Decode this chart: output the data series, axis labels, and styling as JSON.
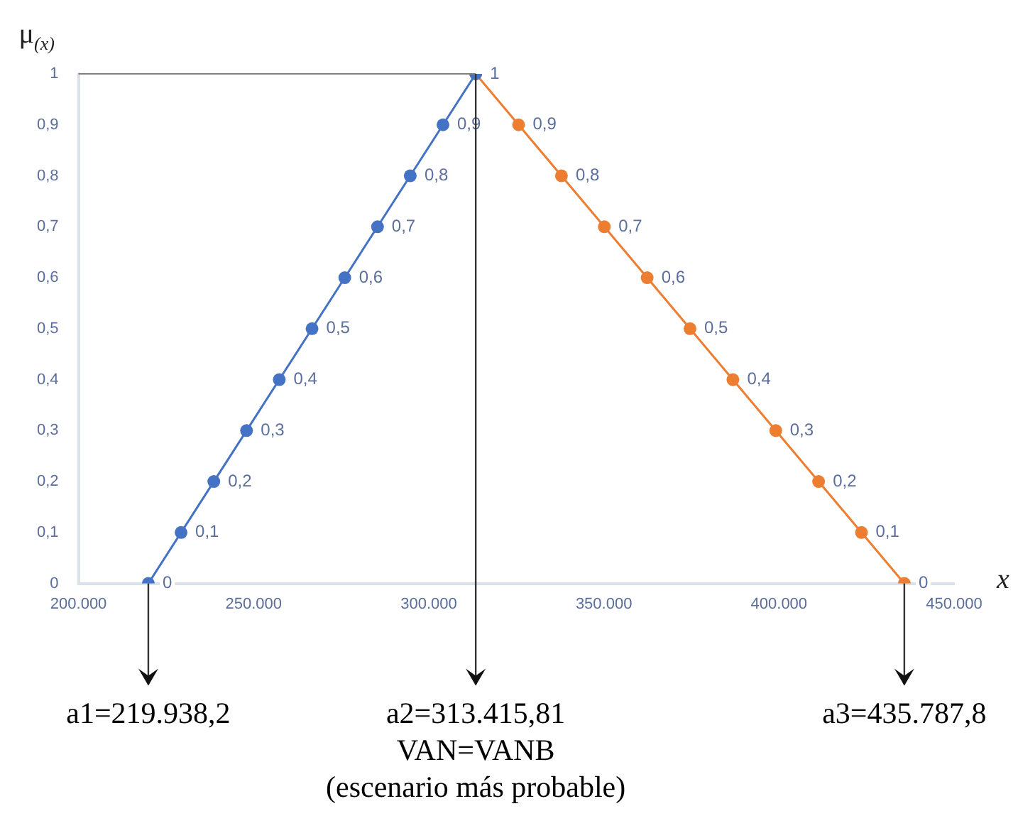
{
  "chart_data": {
    "type": "line",
    "xlabel": "x",
    "ylabel": "μ$_{(x)}$",
    "xlim": [
      200000,
      450000
    ],
    "xticks": [
      {
        "value": 200000,
        "label": "200.000"
      },
      {
        "value": 250000,
        "label": "250.000"
      },
      {
        "value": 300000,
        "label": "300.000"
      },
      {
        "value": 350000,
        "label": "350.000"
      },
      {
        "value": 400000,
        "label": "400.000"
      },
      {
        "value": 450000,
        "label": "450.000"
      }
    ],
    "ylim": [
      0,
      1
    ],
    "yticks": [
      0,
      {
        "value": 0.1,
        "label": "0,1"
      },
      {
        "value": 0.2,
        "label": "0,2"
      },
      {
        "value": 0.3,
        "label": "0,3"
      },
      {
        "value": 0.4,
        "label": "0,4"
      },
      {
        "value": 0.5,
        "label": "0,5"
      },
      {
        "value": 0.6,
        "label": "0,6"
      },
      {
        "value": 0.7,
        "label": "0,7"
      },
      {
        "value": 0.8,
        "label": "0,8"
      },
      {
        "value": 0.9,
        "label": "0,9"
      },
      1
    ],
    "series": [
      {
        "color": "#4472c4",
        "x": [
          219938,
          229286,
          238634,
          247981,
          257329,
          266677,
          276025,
          285373,
          294720,
          304068,
          313416
        ],
        "values": [
          0,
          0.1,
          0.2,
          0.3,
          0.4,
          0.5,
          0.6,
          0.7,
          0.8,
          0.9,
          1
        ],
        "value_labels": [
          "0",
          "0,1",
          "0,2",
          "0,3",
          "0,4",
          "0,5",
          "0,6",
          "0,7",
          "0,8",
          "0,9",
          null
        ]
      },
      {
        "color": "#ed7d31",
        "x": [
          313416,
          325653,
          337890,
          350128,
          362365,
          374602,
          386839,
          399076,
          411313,
          423551,
          435788
        ],
        "values": [
          1,
          0.9,
          0.8,
          0.7,
          0.6,
          0.5,
          0.4,
          0.3,
          0.2,
          0.1,
          0
        ],
        "value_labels": [
          "1",
          "0,9",
          "0,8",
          "0,7",
          "0,6",
          "0,5",
          "0,4",
          "0,3",
          "0,2",
          "0,1",
          "0"
        ]
      }
    ],
    "marker": "circle",
    "line_style": "solid",
    "grid": false,
    "legend": false,
    "ref_lines": [
      {
        "axis": "y",
        "value": 1,
        "color": "#7f7f7f"
      }
    ],
    "annotations": [
      {
        "text": "a1=219.938,2",
        "x": 219938.2,
        "y": 0
      },
      {
        "text": "a2=313.415,81\nVAN=VANB\n(escenario más probable)",
        "x": 313415.81,
        "y": 1
      },
      {
        "text": "a3=435.787,8",
        "x": 435787.8,
        "y": 0
      }
    ]
  }
}
